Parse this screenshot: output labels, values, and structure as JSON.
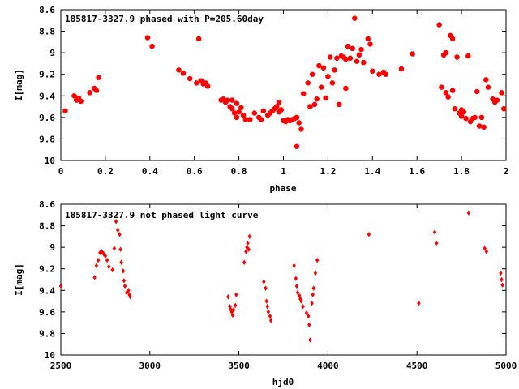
{
  "colors": {
    "points": "#ff0000",
    "axes": "#000000",
    "background": "#ffffff"
  },
  "chart_data": [
    {
      "type": "scatter",
      "title": "185817-3327.9 phased with P=205.60day",
      "xlabel": "phase",
      "ylabel": "I[mag]",
      "xlim": [
        0,
        2
      ],
      "ylim": [
        10,
        8.6
      ],
      "y_inverted": true,
      "xticks": [
        "0",
        "0.2",
        "0.4",
        "0.6",
        "0.8",
        "1",
        "1.2",
        "1.4",
        "1.6",
        "1.8",
        "2"
      ],
      "yticks": [
        "8.6",
        "8.8",
        "9",
        "9.2",
        "9.4",
        "9.6",
        "9.8",
        "10"
      ],
      "grid": false,
      "marker": "filled-hexagon",
      "series": [
        {
          "points": [
            [
              0.02,
              9.54
            ],
            [
              0.06,
              9.4
            ],
            [
              0.07,
              9.44
            ],
            [
              0.08,
              9.42
            ],
            [
              0.09,
              9.45
            ],
            [
              0.13,
              9.37
            ],
            [
              0.15,
              9.33
            ],
            [
              0.16,
              9.35
            ],
            [
              0.17,
              9.23
            ],
            [
              0.39,
              8.86
            ],
            [
              0.41,
              8.94
            ],
            [
              0.53,
              9.16
            ],
            [
              0.55,
              9.19
            ],
            [
              0.58,
              9.24
            ],
            [
              0.61,
              9.28
            ],
            [
              0.62,
              8.87
            ],
            [
              0.63,
              9.26
            ],
            [
              0.64,
              9.29
            ],
            [
              0.65,
              9.28
            ],
            [
              0.66,
              9.31
            ],
            [
              0.72,
              9.44
            ],
            [
              0.73,
              9.43
            ],
            [
              0.74,
              9.46
            ],
            [
              0.75,
              9.44
            ],
            [
              0.76,
              9.5
            ],
            [
              0.77,
              9.52
            ],
            [
              0.77,
              9.44
            ],
            [
              0.78,
              9.56
            ],
            [
              0.79,
              9.47
            ],
            [
              0.79,
              9.6
            ],
            [
              0.8,
              9.55
            ],
            [
              0.81,
              9.51
            ],
            [
              0.82,
              9.58
            ],
            [
              0.83,
              9.62
            ],
            [
              0.85,
              9.62
            ],
            [
              0.87,
              9.56
            ],
            [
              0.89,
              9.6
            ],
            [
              0.9,
              9.62
            ],
            [
              0.91,
              9.54
            ],
            [
              0.93,
              9.58
            ],
            [
              0.94,
              9.56
            ],
            [
              0.95,
              9.54
            ],
            [
              0.96,
              9.52
            ],
            [
              0.97,
              9.5
            ],
            [
              0.98,
              9.55
            ],
            [
              0.98,
              9.46
            ],
            [
              0.99,
              9.53
            ],
            [
              1.0,
              9.63
            ],
            [
              1.01,
              9.64
            ],
            [
              1.02,
              9.62
            ],
            [
              1.03,
              9.63
            ],
            [
              1.04,
              9.62
            ],
            [
              1.05,
              9.61
            ],
            [
              1.06,
              9.6
            ],
            [
              1.06,
              9.87
            ],
            [
              1.07,
              9.65
            ],
            [
              1.08,
              9.71
            ],
            [
              1.09,
              9.38
            ],
            [
              1.11,
              9.28
            ],
            [
              1.12,
              9.5
            ],
            [
              1.13,
              9.2
            ],
            [
              1.14,
              9.48
            ],
            [
              1.15,
              9.43
            ],
            [
              1.16,
              9.12
            ],
            [
              1.17,
              9.32
            ],
            [
              1.18,
              9.14
            ],
            [
              1.19,
              9.42
            ],
            [
              1.2,
              9.22
            ],
            [
              1.21,
              9.04
            ],
            [
              1.22,
              9.28
            ],
            [
              1.23,
              9.16
            ],
            [
              1.24,
              9.05
            ],
            [
              1.25,
              9.48
            ],
            [
              1.26,
              9.03
            ],
            [
              1.27,
              9.04
            ],
            [
              1.28,
              9.33
            ],
            [
              1.28,
              9.06
            ],
            [
              1.29,
              8.94
            ],
            [
              1.3,
              9.05
            ],
            [
              1.31,
              8.96
            ],
            [
              1.32,
              8.68
            ],
            [
              1.33,
              9.08
            ],
            [
              1.34,
              9.02
            ],
            [
              1.35,
              8.97
            ],
            [
              1.36,
              9.09
            ],
            [
              1.38,
              8.87
            ],
            [
              1.39,
              8.92
            ],
            [
              1.4,
              9.17
            ],
            [
              1.43,
              9.2
            ],
            [
              1.45,
              9.18
            ],
            [
              1.46,
              9.2
            ],
            [
              1.53,
              9.15
            ],
            [
              1.58,
              9.01
            ],
            [
              1.7,
              8.74
            ],
            [
              1.71,
              9.32
            ],
            [
              1.72,
              9.02
            ],
            [
              1.73,
              9.37
            ],
            [
              1.73,
              9.0
            ],
            [
              1.74,
              9.41
            ],
            [
              1.75,
              8.84
            ],
            [
              1.76,
              9.35
            ],
            [
              1.76,
              8.87
            ],
            [
              1.77,
              9.52
            ],
            [
              1.78,
              9.04
            ],
            [
              1.79,
              9.56
            ],
            [
              1.8,
              9.53
            ],
            [
              1.8,
              9.59
            ],
            [
              1.81,
              9.55
            ],
            [
              1.82,
              9.61
            ],
            [
              1.83,
              9.03
            ],
            [
              1.84,
              9.64
            ],
            [
              1.85,
              9.61
            ],
            [
              1.86,
              9.6
            ],
            [
              1.87,
              9.36
            ],
            [
              1.88,
              9.68
            ],
            [
              1.89,
              9.6
            ],
            [
              1.9,
              9.69
            ],
            [
              1.91,
              9.25
            ],
            [
              1.92,
              9.32
            ],
            [
              1.94,
              9.43
            ],
            [
              1.95,
              9.46
            ],
            [
              1.96,
              9.44
            ],
            [
              1.98,
              9.37
            ],
            [
              1.99,
              9.52
            ]
          ]
        }
      ]
    },
    {
      "type": "scatter",
      "title": "185817-3327.9 not phased light curve",
      "xlabel": "hjd0",
      "ylabel": "I[mag]",
      "xlim": [
        2500,
        5000
      ],
      "ylim": [
        10,
        8.6
      ],
      "y_inverted": true,
      "xticks": [
        "2500",
        "3000",
        "3500",
        "4000",
        "4500",
        "5000"
      ],
      "yticks": [
        "8.6",
        "8.8",
        "9",
        "9.2",
        "9.4",
        "9.6",
        "9.8",
        "10"
      ],
      "grid": false,
      "marker": "filled-diamond",
      "series": [
        {
          "points": [
            [
              2500,
              9.36
            ],
            [
              2690,
              9.28
            ],
            [
              2700,
              9.17
            ],
            [
              2710,
              9.12
            ],
            [
              2720,
              9.05
            ],
            [
              2730,
              9.04
            ],
            [
              2740,
              9.06
            ],
            [
              2750,
              9.08
            ],
            [
              2760,
              9.12
            ],
            [
              2770,
              9.18
            ],
            [
              2790,
              9.21
            ],
            [
              2800,
              9.01
            ],
            [
              2810,
              8.76
            ],
            [
              2820,
              8.84
            ],
            [
              2830,
              8.88
            ],
            [
              2835,
              9.02
            ],
            [
              2840,
              9.14
            ],
            [
              2850,
              9.22
            ],
            [
              2855,
              9.31
            ],
            [
              2860,
              9.36
            ],
            [
              2870,
              9.42
            ],
            [
              2880,
              9.4
            ],
            [
              2885,
              9.44
            ],
            [
              2890,
              9.46
            ],
            [
              3440,
              9.46
            ],
            [
              3450,
              9.55
            ],
            [
              3455,
              9.58
            ],
            [
              3460,
              9.6
            ],
            [
              3465,
              9.63
            ],
            [
              3470,
              9.58
            ],
            [
              3480,
              9.54
            ],
            [
              3485,
              9.44
            ],
            [
              3530,
              9.14
            ],
            [
              3540,
              9.04
            ],
            [
              3545,
              9.0
            ],
            [
              3550,
              8.96
            ],
            [
              3555,
              9.02
            ],
            [
              3560,
              8.9
            ],
            [
              3640,
              9.32
            ],
            [
              3650,
              9.38
            ],
            [
              3655,
              9.5
            ],
            [
              3660,
              9.55
            ],
            [
              3665,
              9.6
            ],
            [
              3675,
              9.64
            ],
            [
              3680,
              9.68
            ],
            [
              3810,
              9.17
            ],
            [
              3820,
              9.29
            ],
            [
              3825,
              9.36
            ],
            [
              3830,
              9.42
            ],
            [
              3840,
              9.45
            ],
            [
              3845,
              9.48
            ],
            [
              3850,
              9.5
            ],
            [
              3860,
              9.55
            ],
            [
              3880,
              9.61
            ],
            [
              3890,
              9.64
            ],
            [
              3895,
              9.72
            ],
            [
              3900,
              9.86
            ],
            [
              3910,
              9.52
            ],
            [
              3915,
              9.44
            ],
            [
              3920,
              9.38
            ],
            [
              3930,
              9.24
            ],
            [
              3940,
              9.12
            ],
            [
              4230,
              8.88
            ],
            [
              4510,
              9.52
            ],
            [
              4600,
              8.86
            ],
            [
              4610,
              8.96
            ],
            [
              4790,
              8.68
            ],
            [
              4880,
              9.01
            ],
            [
              4890,
              9.04
            ],
            [
              4970,
              9.24
            ],
            [
              4975,
              9.3
            ],
            [
              4980,
              9.35
            ]
          ]
        }
      ]
    }
  ]
}
